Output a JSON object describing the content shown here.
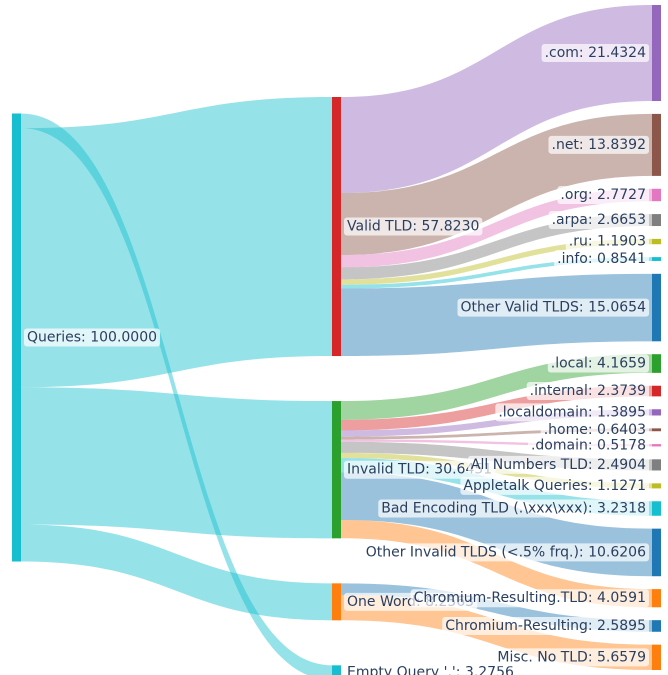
{
  "chart_data": {
    "type": "sankey",
    "nodes": [
      {
        "label": "Queries: 100.0000",
        "value": 100,
        "color": "#17becf"
      },
      {
        "label": "Valid TLD: 57.8230",
        "value": 57.823,
        "color": "#d62728"
      },
      {
        "label": "Invalid TLD: 30.6451",
        "value": 30.6451,
        "color": "#2ca02c"
      },
      {
        "label": "One Word: 8.2563",
        "value": 8.2563,
        "color": "#ff7f0e"
      },
      {
        "label": "Empty Query '.': 3.2756",
        "value": 3.2756,
        "color": "#17becf"
      },
      {
        "label": ".com: 21.4324",
        "value": 21.4324,
        "color": "#9467bd"
      },
      {
        "label": ".net: 13.8392",
        "value": 13.8392,
        "color": "#8c564b"
      },
      {
        "label": ".org: 2.7727",
        "value": 2.7727,
        "color": "#e377c2"
      },
      {
        "label": ".arpa: 2.6653",
        "value": 2.6653,
        "color": "#7f7f7f"
      },
      {
        "label": ".ru: 1.1903",
        "value": 1.1903,
        "color": "#bcbd22"
      },
      {
        "label": ".info: 0.8541",
        "value": 0.8541,
        "color": "#17becf"
      },
      {
        "label": "Other Valid TLDS: 15.0654",
        "value": 15.0654,
        "color": "#1f77b4"
      },
      {
        "label": ".local: 4.1659",
        "value": 4.1659,
        "color": "#2ca02c"
      },
      {
        "label": ".internal: 2.3739",
        "value": 2.3739,
        "color": "#d62728"
      },
      {
        "label": ".localdomain: 1.3895",
        "value": 1.3895,
        "color": "#9467bd"
      },
      {
        "label": ".home: 0.6403",
        "value": 0.6403,
        "color": "#8c564b"
      },
      {
        "label": ".domain: 0.5178",
        "value": 0.5178,
        "color": "#e377c2"
      },
      {
        "label": "All Numbers TLD: 2.4904",
        "value": 2.4904,
        "color": "#7f7f7f"
      },
      {
        "label": "Appletalk Queries: 1.1271",
        "value": 1.1271,
        "color": "#bcbd22"
      },
      {
        "label": "Bad Encoding TLD (.\\xxx\\xxx): 3.2318",
        "value": 3.2318,
        "color": "#17becf"
      },
      {
        "label": "Other Invalid TLDS (<.5% frq.): 10.6206",
        "value": 10.6206,
        "color": "#1f77b4"
      },
      {
        "label": "Chromium-Resulting.TLD: 4.0591",
        "value": 4.0591,
        "color": "#ff7f0e"
      },
      {
        "label": "Chromium-Resulting: 2.5895",
        "value": 2.5895,
        "color": "#1f77b4"
      },
      {
        "label": "Misc. No TLD: 5.6579",
        "value": 5.6579,
        "color": "#ff7f0e"
      }
    ],
    "links": [
      {
        "source": 0,
        "target": 4,
        "value": 3.2756,
        "color": "#17becf"
      },
      {
        "source": 0,
        "target": 1,
        "value": 57.823,
        "color": "#17becf"
      },
      {
        "source": 0,
        "target": 2,
        "value": 30.6451,
        "color": "#17becf"
      },
      {
        "source": 0,
        "target": 3,
        "value": 8.2563,
        "color": "#17becf"
      },
      {
        "source": 1,
        "target": 5,
        "value": 21.4324,
        "color": "#9467bd"
      },
      {
        "source": 1,
        "target": 6,
        "value": 13.8392,
        "color": "#8c564b"
      },
      {
        "source": 1,
        "target": 7,
        "value": 2.7727,
        "color": "#e377c2"
      },
      {
        "source": 1,
        "target": 8,
        "value": 2.6653,
        "color": "#7f7f7f"
      },
      {
        "source": 1,
        "target": 9,
        "value": 1.1903,
        "color": "#bcbd22"
      },
      {
        "source": 1,
        "target": 10,
        "value": 0.8541,
        "color": "#17becf"
      },
      {
        "source": 1,
        "target": 11,
        "value": 15.0654,
        "color": "#1f77b4"
      },
      {
        "source": 2,
        "target": 12,
        "value": 4.1659,
        "color": "#2ca02c"
      },
      {
        "source": 2,
        "target": 13,
        "value": 2.3739,
        "color": "#d62728"
      },
      {
        "source": 2,
        "target": 14,
        "value": 1.3895,
        "color": "#9467bd"
      },
      {
        "source": 2,
        "target": 15,
        "value": 0.6403,
        "color": "#8c564b"
      },
      {
        "source": 2,
        "target": 16,
        "value": 0.5178,
        "color": "#e377c2"
      },
      {
        "source": 2,
        "target": 17,
        "value": 2.4904,
        "color": "#7f7f7f"
      },
      {
        "source": 2,
        "target": 18,
        "value": 1.1271,
        "color": "#bcbd22"
      },
      {
        "source": 2,
        "target": 19,
        "value": 3.2318,
        "color": "#17becf"
      },
      {
        "source": 2,
        "target": 20,
        "value": 10.6206,
        "color": "#1f77b4"
      },
      {
        "source": 2,
        "target": 21,
        "value": 4.0591,
        "color": "#ff7f0e"
      },
      {
        "source": 3,
        "target": 22,
        "value": 2.5895,
        "color": "#1f77b4"
      },
      {
        "source": 3,
        "target": 23,
        "value": 5.6579,
        "color": "#ff7f0e"
      }
    ]
  }
}
